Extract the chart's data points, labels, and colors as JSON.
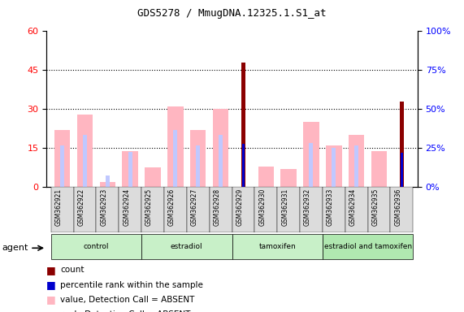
{
  "title": "GDS5278 / MmugDNA.12325.1.S1_at",
  "samples": [
    "GSM362921",
    "GSM362922",
    "GSM362923",
    "GSM362924",
    "GSM362925",
    "GSM362926",
    "GSM362927",
    "GSM362928",
    "GSM362929",
    "GSM362930",
    "GSM362931",
    "GSM362932",
    "GSM362933",
    "GSM362934",
    "GSM362935",
    "GSM362936"
  ],
  "pink_values": [
    22,
    28,
    2,
    14,
    7.5,
    31,
    22,
    30,
    0,
    8,
    7,
    25,
    16,
    20,
    14,
    0
  ],
  "blue_rank_values": [
    16,
    20,
    4.5,
    13.5,
    0,
    22,
    16,
    20,
    0,
    0,
    0,
    17,
    15,
    16,
    0,
    22
  ],
  "red_count_values": [
    0,
    0,
    0,
    0,
    0,
    0,
    0,
    0,
    48,
    0,
    0,
    0,
    0,
    0,
    0,
    33
  ],
  "blue_pct_values": [
    0,
    0,
    0,
    0,
    0,
    0,
    0,
    0,
    28,
    0,
    0,
    0,
    0,
    0,
    0,
    22
  ],
  "ylim_left": [
    0,
    60
  ],
  "ylim_right": [
    0,
    100
  ],
  "yticks_left": [
    0,
    15,
    30,
    45,
    60
  ],
  "yticks_right": [
    0,
    25,
    50,
    75,
    100
  ],
  "ytick_labels_right": [
    "0%",
    "25%",
    "50%",
    "75%",
    "100%"
  ],
  "color_pink": "#FFB6C1",
  "color_blue_rank": "#C0C8FF",
  "color_red": "#8B0000",
  "color_blue_pct": "#0000CD",
  "group_colors": [
    "#c8f0c8",
    "#c8f0c8",
    "#c8f0c8",
    "#b0e8b0"
  ],
  "group_labels": [
    "control",
    "estradiol",
    "tamoxifen",
    "estradiol and tamoxifen"
  ],
  "group_ranges": [
    [
      0,
      4
    ],
    [
      4,
      8
    ],
    [
      8,
      12
    ],
    [
      12,
      16
    ]
  ],
  "bg_color": "#FFFFFF"
}
